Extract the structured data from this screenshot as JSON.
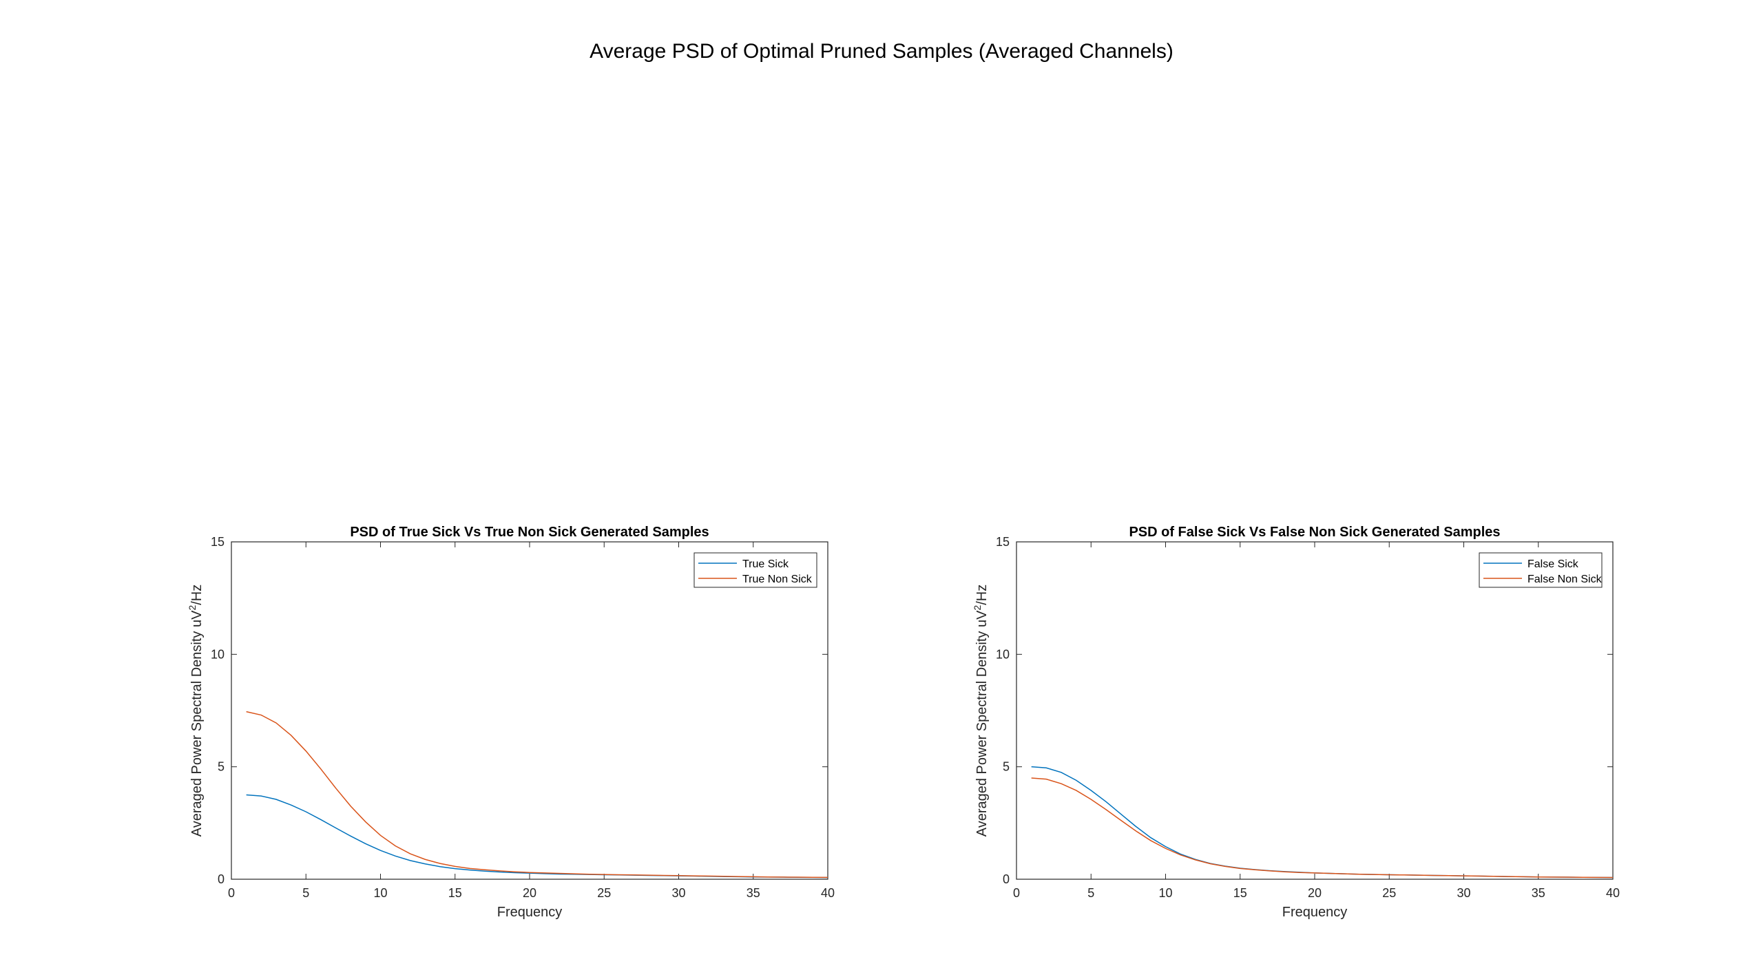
{
  "figure": {
    "title": "Average PSD of Optimal Pruned Samples (Averaged Channels)"
  },
  "chart_data": [
    {
      "type": "line",
      "title": "PSD of True Sick Vs True Non Sick Generated Samples",
      "xlabel": "Frequency",
      "ylabel_main": "Averaged Power Spectral Density uV",
      "ylabel_sup": "2",
      "ylabel_tail": "/Hz",
      "xlim": [
        0,
        40
      ],
      "ylim": [
        0,
        15
      ],
      "xticks": [
        0,
        5,
        10,
        15,
        20,
        25,
        30,
        35,
        40
      ],
      "yticks": [
        0,
        5,
        10,
        15
      ],
      "grid": false,
      "legend_position": "top-right",
      "x": [
        1,
        2,
        3,
        4,
        5,
        6,
        7,
        8,
        9,
        10,
        11,
        12,
        13,
        14,
        15,
        16,
        17,
        18,
        19,
        20,
        21,
        22,
        23,
        24,
        25,
        26,
        27,
        28,
        29,
        30,
        31,
        32,
        33,
        34,
        35,
        36,
        37,
        38,
        39,
        40
      ],
      "series": [
        {
          "name": "True Sick",
          "color": "#0072BD",
          "values": [
            3.75,
            3.7,
            3.55,
            3.3,
            3.0,
            2.65,
            2.28,
            1.92,
            1.58,
            1.28,
            1.03,
            0.83,
            0.68,
            0.56,
            0.47,
            0.41,
            0.36,
            0.32,
            0.29,
            0.27,
            0.25,
            0.23,
            0.22,
            0.21,
            0.2,
            0.19,
            0.18,
            0.17,
            0.16,
            0.15,
            0.14,
            0.13,
            0.12,
            0.11,
            0.1,
            0.095,
            0.09,
            0.085,
            0.08,
            0.075
          ]
        },
        {
          "name": "True Non Sick",
          "color": "#D95319",
          "values": [
            7.45,
            7.3,
            6.95,
            6.4,
            5.7,
            4.9,
            4.05,
            3.25,
            2.55,
            1.95,
            1.48,
            1.13,
            0.88,
            0.7,
            0.57,
            0.48,
            0.42,
            0.37,
            0.33,
            0.3,
            0.28,
            0.26,
            0.24,
            0.22,
            0.21,
            0.2,
            0.19,
            0.18,
            0.17,
            0.16,
            0.15,
            0.14,
            0.13,
            0.12,
            0.11,
            0.1,
            0.095,
            0.09,
            0.085,
            0.08
          ]
        }
      ]
    },
    {
      "type": "line",
      "title": "PSD of False Sick Vs False Non Sick Generated Samples",
      "xlabel": "Frequency",
      "ylabel_main": "Averaged Power Spectral Density uV",
      "ylabel_sup": "2",
      "ylabel_tail": "/Hz",
      "xlim": [
        0,
        40
      ],
      "ylim": [
        0,
        15
      ],
      "xticks": [
        0,
        5,
        10,
        15,
        20,
        25,
        30,
        35,
        40
      ],
      "yticks": [
        0,
        5,
        10,
        15
      ],
      "grid": false,
      "legend_position": "top-right",
      "x": [
        1,
        2,
        3,
        4,
        5,
        6,
        7,
        8,
        9,
        10,
        11,
        12,
        13,
        14,
        15,
        16,
        17,
        18,
        19,
        20,
        21,
        22,
        23,
        24,
        25,
        26,
        27,
        28,
        29,
        30,
        31,
        32,
        33,
        34,
        35,
        36,
        37,
        38,
        39,
        40
      ],
      "series": [
        {
          "name": "False Sick",
          "color": "#0072BD",
          "values": [
            5.0,
            4.95,
            4.75,
            4.4,
            3.95,
            3.45,
            2.9,
            2.35,
            1.85,
            1.45,
            1.12,
            0.88,
            0.7,
            0.58,
            0.49,
            0.43,
            0.38,
            0.34,
            0.31,
            0.28,
            0.26,
            0.24,
            0.22,
            0.21,
            0.2,
            0.19,
            0.18,
            0.17,
            0.16,
            0.15,
            0.14,
            0.13,
            0.12,
            0.11,
            0.1,
            0.095,
            0.09,
            0.085,
            0.08,
            0.075
          ]
        },
        {
          "name": "False Non Sick",
          "color": "#D95319",
          "values": [
            4.5,
            4.45,
            4.25,
            3.95,
            3.55,
            3.1,
            2.62,
            2.15,
            1.72,
            1.37,
            1.08,
            0.86,
            0.69,
            0.57,
            0.48,
            0.42,
            0.37,
            0.33,
            0.3,
            0.28,
            0.26,
            0.24,
            0.22,
            0.21,
            0.2,
            0.19,
            0.18,
            0.17,
            0.16,
            0.15,
            0.14,
            0.13,
            0.12,
            0.11,
            0.1,
            0.095,
            0.09,
            0.085,
            0.08,
            0.075
          ]
        }
      ]
    }
  ]
}
